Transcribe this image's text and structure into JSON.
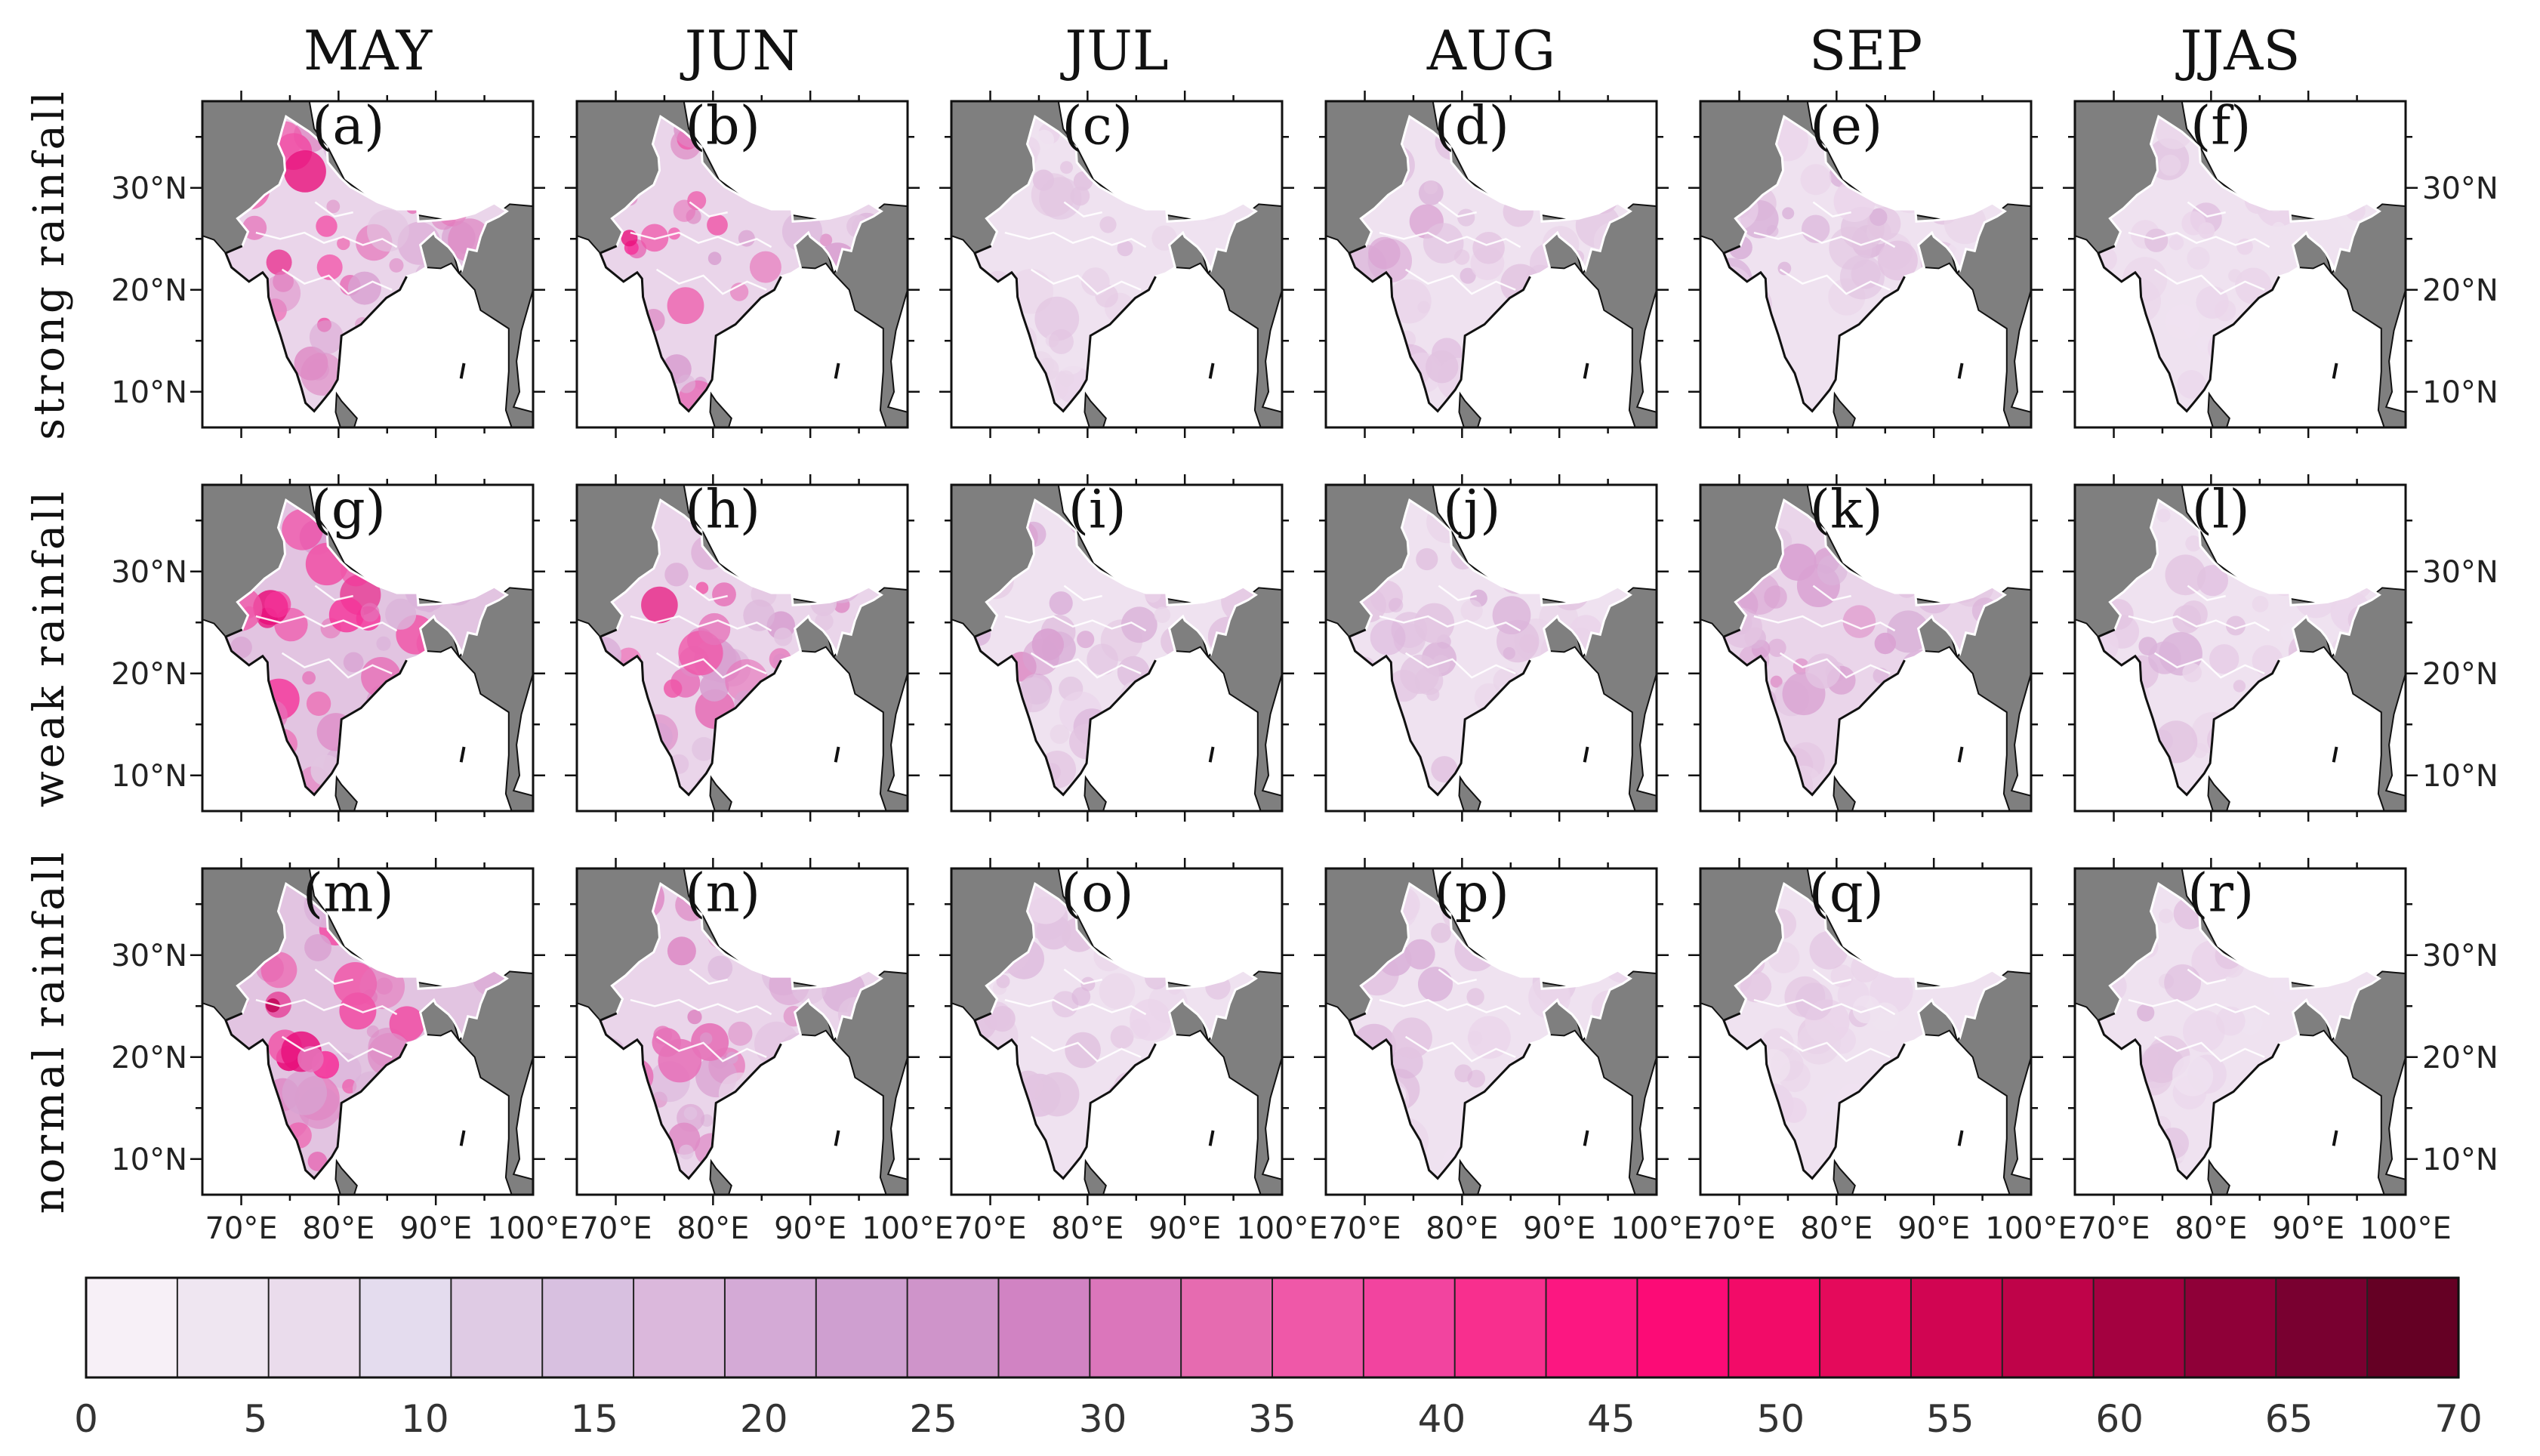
{
  "chart_data": {
    "type": "heatmap",
    "description_kind": "map panel grid",
    "columns": [
      "MAY",
      "JUN",
      "JUL",
      "AUG",
      "SEP",
      "JJAS"
    ],
    "rows": [
      "strong rainfall",
      "weak rainfall",
      "normal rainfall"
    ],
    "panel_labels": [
      "(a)",
      "(b)",
      "(c)",
      "(d)",
      "(e)",
      "(f)",
      "(g)",
      "(h)",
      "(i)",
      "(j)",
      "(k)",
      "(l)",
      "(m)",
      "(n)",
      "(o)",
      "(p)",
      "(q)",
      "(r)"
    ],
    "panel_intensity": [
      [
        0.62,
        0.58,
        0.22,
        0.3,
        0.26,
        0.18
      ],
      [
        0.66,
        0.55,
        0.36,
        0.28,
        0.38,
        0.26
      ],
      [
        0.64,
        0.52,
        0.24,
        0.26,
        0.2,
        0.22
      ]
    ],
    "x_ticks": [
      "70°E",
      "80°E",
      "90°E",
      "100°E"
    ],
    "y_ticks": [
      "30°N",
      "20°N",
      "10°N"
    ],
    "colorbar": {
      "ticks": [
        "0",
        "5",
        "10",
        "15",
        "20",
        "25",
        "30",
        "35",
        "40",
        "45",
        "50",
        "55",
        "60",
        "65",
        "70"
      ],
      "min": 0,
      "max": 70,
      "colors": [
        "#f7f0f7",
        "#efe6f1",
        "#eadcec",
        "#e4dcee",
        "#dfcbe4",
        "#d8c0e0",
        "#dbb8dc",
        "#d4aad6",
        "#cf9fd0",
        "#cf94ca",
        "#d183c3",
        "#db76bb",
        "#e66bb0",
        "#ef58a8",
        "#f2449f",
        "#f82f8e",
        "#fc1781",
        "#fc0b76",
        "#f20b68",
        "#e40a5b",
        "#d10552",
        "#bf0349",
        "#a40140",
        "#8f0038",
        "#790030",
        "#650024"
      ]
    },
    "land_color": "#7f7f7f",
    "ocean_color": "#ffffff"
  }
}
